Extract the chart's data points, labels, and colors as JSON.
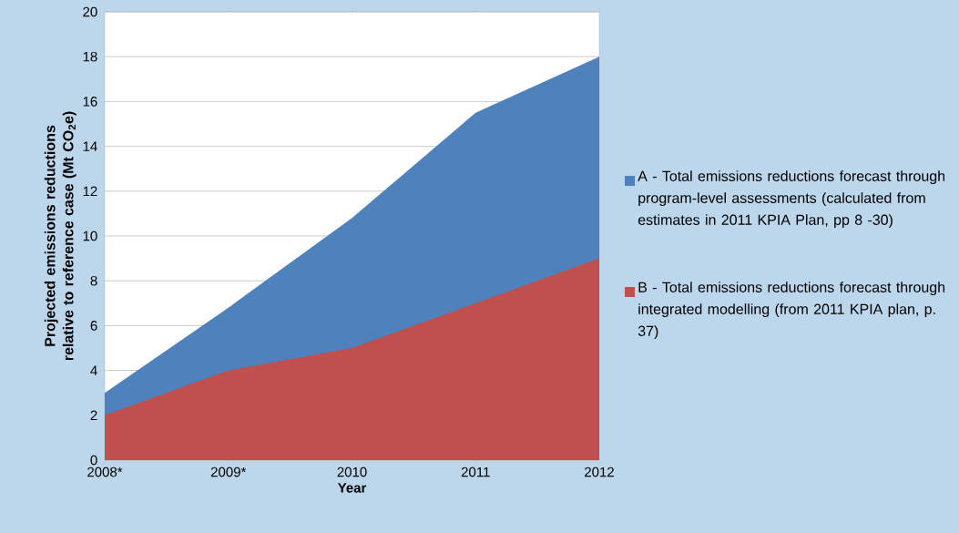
{
  "chart_data": {
    "type": "area",
    "xlabel": "Year",
    "ylabel": "Projected emissions reductions relative to reference case (Mt CO$_{2}$e)",
    "categories": [
      "2008*",
      "2009*",
      "2010",
      "2011",
      "2012"
    ],
    "series": [
      {
        "name": "A - Total emissions reductions forecast through program-level assessments (calculated from estimates in 2011 KPIA Plan, pp 8 -30)",
        "color": "#4f81bd",
        "values": [
          3.0,
          6.8,
          10.8,
          15.5,
          18
        ]
      },
      {
        "name": "B - Total emissions reductions forecast through integrated modelling (from 2011 KPIA plan, p. 37)",
        "color": "#c0504d",
        "values": [
          2.0,
          4.0,
          5.0,
          7.0,
          9.0
        ]
      }
    ],
    "ylim": [
      0,
      20
    ],
    "yticks": [
      0,
      2,
      4,
      6,
      8,
      10,
      12,
      14,
      16,
      18,
      20
    ],
    "grid": "y",
    "legend": "right"
  }
}
